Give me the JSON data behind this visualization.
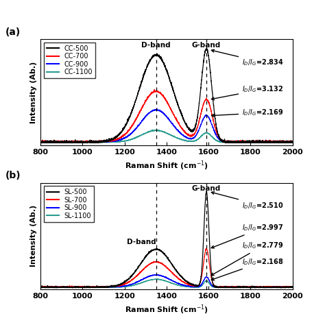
{
  "x_range": [
    800,
    2000
  ],
  "D_band": 1350,
  "G_band": 1590,
  "panel_a": {
    "label": "(a)",
    "legend": [
      "CC-500",
      "CC-700",
      "CC-900",
      "CC-1100"
    ],
    "colors": [
      "black",
      "red",
      "blue",
      "#2a9d8f"
    ],
    "ratio_texts": [
      "$I_D/I_G$=2.834",
      "$I_D/I_G$=3.132",
      "$I_D/I_G$=2.169"
    ],
    "D_band_label": "D-band",
    "G_band_label": "G-band"
  },
  "panel_b": {
    "label": "(b)",
    "legend": [
      "SL-500",
      "SL-700",
      "SL-900",
      "SL-1100"
    ],
    "colors": [
      "black",
      "red",
      "blue",
      "#2a9d8f"
    ],
    "ratio_texts": [
      "$I_D/I_G$=2.510",
      "$I_D/I_G$=2.997",
      "$I_D/I_G$=2.779",
      "$I_D/I_G$=2.168"
    ],
    "D_band_label": "D-band",
    "G_band_label": "G-band"
  },
  "xlabel": "Raman Shift (cm$^{-1}$)",
  "ylabel": "Intensity (Ab.)",
  "xticks": [
    800,
    1000,
    1200,
    1400,
    1600,
    1800,
    2000
  ],
  "background_color": "white"
}
